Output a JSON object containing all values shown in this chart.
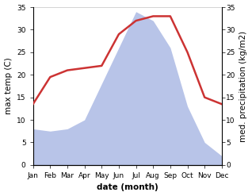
{
  "months": [
    "Jan",
    "Feb",
    "Mar",
    "Apr",
    "May",
    "Jun",
    "Jul",
    "Aug",
    "Sep",
    "Oct",
    "Nov",
    "Dec"
  ],
  "temperature": [
    13.5,
    19.5,
    21.0,
    21.5,
    22.0,
    29.0,
    32.0,
    33.0,
    33.0,
    25.0,
    15.0,
    13.5
  ],
  "precipitation": [
    8.0,
    7.5,
    8.0,
    10.0,
    18.0,
    26.0,
    34.0,
    32.0,
    26.0,
    13.0,
    5.0,
    2.0
  ],
  "temp_color": "#cc3333",
  "precip_color": "#b8c4e8",
  "ylim_left": [
    0,
    35
  ],
  "ylim_right": [
    0,
    35
  ],
  "ylabel_left": "max temp (C)",
  "ylabel_right": "med. precipitation (kg/m2)",
  "xlabel": "date (month)",
  "bg_color": "#ffffff",
  "plot_bg_color": "#ffffff",
  "label_fontsize": 7.5,
  "tick_fontsize": 6.5
}
